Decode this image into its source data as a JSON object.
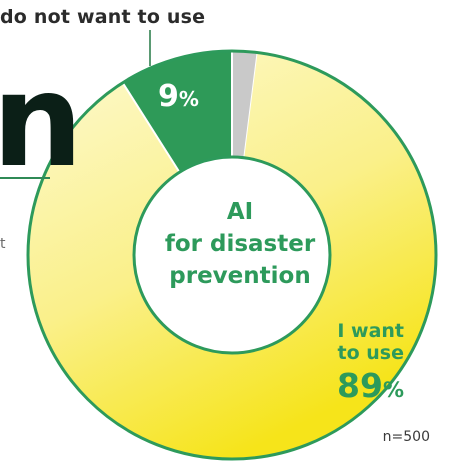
{
  "chart_data": {
    "type": "pie",
    "title": "AI for disaster prevention",
    "title_lines": [
      "AI",
      "for disaster",
      "prevention"
    ],
    "slices": [
      {
        "label": "I want to use",
        "label_lines": [
          "I want",
          "to use"
        ],
        "value": 89,
        "display": "89",
        "color": "#f8ea5c"
      },
      {
        "label": "I do not want to use",
        "value": 9,
        "display": "9",
        "color": "#2e9a58"
      },
      {
        "label": "",
        "value": 2,
        "display": "",
        "color": "#c9c9c9"
      }
    ],
    "unit_symbol": "%",
    "sample_note": "n=500",
    "top_label_visible": "do not want to use",
    "colors": {
      "accent": "#2d9a5b",
      "ring_border": "#2d9a5b",
      "light_yellow": "#fdf9c8",
      "deep_yellow": "#f8ea2a"
    }
  },
  "background": {
    "glyph": "n",
    "fragment": "t"
  }
}
